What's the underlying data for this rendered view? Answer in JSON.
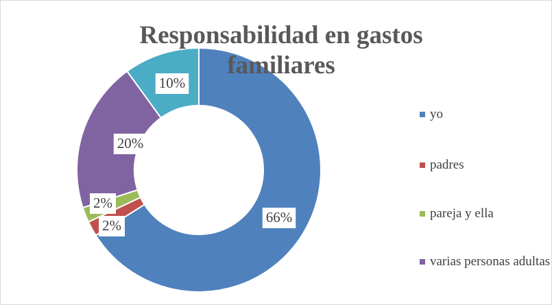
{
  "chart_data": {
    "type": "donut",
    "title": "Responsabilidad en gastos familiares",
    "categories": [
      "yo",
      "padres",
      "pareja y ella",
      "varias personas adultas",
      null
    ],
    "values": [
      66,
      2,
      2,
      20,
      10
    ],
    "value_labels": [
      "66%",
      "2%",
      "2%",
      "20%",
      "10%"
    ],
    "colors": [
      "#4f81bd",
      "#c0504d",
      "#9bbb59",
      "#8064a2",
      "#4bacc6"
    ],
    "legend": "right"
  }
}
